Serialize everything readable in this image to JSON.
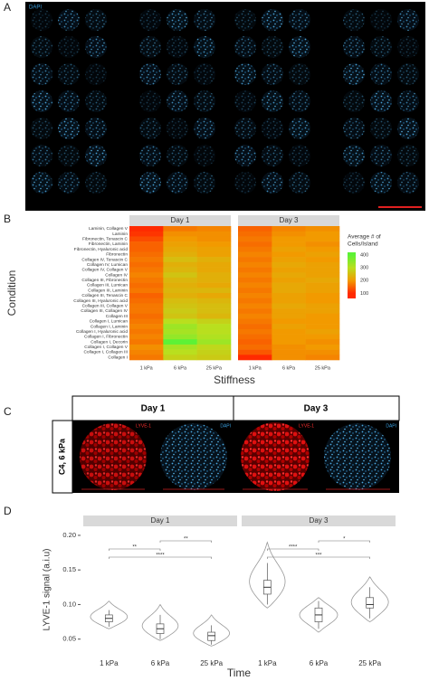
{
  "panel_labels": [
    "A",
    "B",
    "C",
    "D"
  ],
  "panel_a": {
    "stain": "DAPI"
  },
  "panel_c": {
    "sample": "C4, 6 kPa",
    "days": [
      "Day 1",
      "Day 3"
    ],
    "stains": [
      "LYVE-1",
      "DAPI"
    ]
  },
  "chart_data": [
    {
      "type": "heatmap",
      "x_label": "Stiffness",
      "y_label": "Condition",
      "categories": [
        "1 kPa",
        "6 kPa",
        "25 kPa"
      ],
      "rows": [
        "Laminin, Collagen V",
        "Laminin",
        "Fibronectin, Tenascin C",
        "Fibronectin, Laminin",
        "Fibronectin, Hyaluronic acid",
        "Fibronectin",
        "Collagen IV, Tenascin C",
        "Collagen IV, Lumican",
        "Collagen IV, Collagen V",
        "Collagen IV",
        "Collagen III, Fibronectin",
        "Collagen III, Lumican",
        "Collagen III, Laminin",
        "Collagen III, Tenascin C",
        "Collagen III, Hyaluronic acid",
        "Collagen III, Collagen V",
        "Collagen III, Collagen IV",
        "Collagen III",
        "Collagen I, Lumican",
        "Collagen I, Laminin",
        "Collagen I, Hyaluronic acid",
        "Collagen I, Fibronectin",
        "Collagen I, Decorin",
        "Collagen I, Collagen V",
        "Collagen I, Collagen III",
        "Collagen I"
      ],
      "panels": [
        {
          "title": "Day 1",
          "values": [
            [
              90,
              170,
              180
            ],
            [
              110,
              190,
              190
            ],
            [
              130,
              200,
              190
            ],
            [
              150,
              210,
              200
            ],
            [
              150,
              220,
              210
            ],
            [
              160,
              230,
              210
            ],
            [
              170,
              250,
              230
            ],
            [
              160,
              230,
              220
            ],
            [
              170,
              240,
              220
            ],
            [
              180,
              260,
              230
            ],
            [
              170,
              240,
              230
            ],
            [
              160,
              230,
              220
            ],
            [
              170,
              240,
              240
            ],
            [
              150,
              230,
              220
            ],
            [
              160,
              250,
              240
            ],
            [
              170,
              260,
              250
            ],
            [
              170,
              270,
              250
            ],
            [
              160,
              260,
              240
            ],
            [
              170,
              300,
              280
            ],
            [
              180,
              330,
              300
            ],
            [
              170,
              320,
              300
            ],
            [
              180,
              340,
              310
            ],
            [
              170,
              400,
              330
            ],
            [
              190,
              320,
              290
            ],
            [
              180,
              300,
              280
            ],
            [
              170,
              280,
              270
            ]
          ]
        },
        {
          "title": "Day 3",
          "values": [
            [
              150,
              180,
              190
            ],
            [
              160,
              190,
              200
            ],
            [
              170,
              200,
              200
            ],
            [
              160,
              200,
              190
            ],
            [
              170,
              210,
              200
            ],
            [
              180,
              200,
              210
            ],
            [
              170,
              210,
              200
            ],
            [
              180,
              220,
              210
            ],
            [
              170,
              210,
              210
            ],
            [
              180,
              220,
              210
            ],
            [
              170,
              210,
              220
            ],
            [
              180,
              220,
              210
            ],
            [
              170,
              220,
              210
            ],
            [
              180,
              210,
              200
            ],
            [
              170,
              210,
              200
            ],
            [
              180,
              220,
              210
            ],
            [
              170,
              210,
              210
            ],
            [
              180,
              210,
              200
            ],
            [
              170,
              200,
              200
            ],
            [
              160,
              210,
              200
            ],
            [
              170,
              200,
              210
            ],
            [
              160,
              200,
              200
            ],
            [
              150,
              200,
              190
            ],
            [
              160,
              190,
              200
            ],
            [
              140,
              190,
              190
            ],
            [
              90,
              190,
              180
            ]
          ]
        }
      ],
      "colorbar": {
        "title": [
          "Average # of",
          "Cells/Island"
        ],
        "range": [
          60,
          420
        ],
        "ticks": [
          100,
          200,
          300,
          400
        ],
        "colors": [
          "#ff2a00",
          "#f29a00",
          "#b9df1e",
          "#5cf236"
        ]
      }
    },
    {
      "type": "violin",
      "x_label": "Time",
      "y_label": "LYVE-1 signal (a.i.u)",
      "categories": [
        "1 kPa",
        "6 kPa",
        "25 kPa"
      ],
      "ylim": [
        0.03,
        0.213
      ],
      "yticks": [
        {
          "value": 0.05,
          "label": "0.05"
        },
        {
          "value": 0.1,
          "label": "0.10"
        },
        {
          "value": 0.15,
          "label": "0.15"
        },
        {
          "value": 0.2,
          "label": "0.20"
        }
      ],
      "panels": [
        {
          "title": "Day 1",
          "groups": [
            {
              "min": 0.065,
              "whisker_low": 0.068,
              "q1": 0.075,
              "median": 0.08,
              "q3": 0.085,
              "whisker_high": 0.092,
              "max": 0.105
            },
            {
              "min": 0.048,
              "whisker_low": 0.05,
              "q1": 0.058,
              "median": 0.065,
              "q3": 0.072,
              "whisker_high": 0.085,
              "max": 0.1
            },
            {
              "min": 0.04,
              "whisker_low": 0.042,
              "q1": 0.048,
              "median": 0.055,
              "q3": 0.06,
              "whisker_high": 0.07,
              "max": 0.085
            }
          ],
          "comparisons": [
            {
              "from": 1,
              "to": 2,
              "label": "**"
            },
            {
              "from": 0,
              "to": 1,
              "label": "**"
            },
            {
              "from": 0,
              "to": 2,
              "label": "****"
            }
          ]
        },
        {
          "title": "Day 3",
          "groups": [
            {
              "min": 0.095,
              "whisker_low": 0.1,
              "q1": 0.115,
              "median": 0.125,
              "q3": 0.135,
              "whisker_high": 0.16,
              "max": 0.19
            },
            {
              "min": 0.06,
              "whisker_low": 0.065,
              "q1": 0.075,
              "median": 0.085,
              "q3": 0.095,
              "whisker_high": 0.105,
              "max": 0.11
            },
            {
              "min": 0.075,
              "whisker_low": 0.08,
              "q1": 0.095,
              "median": 0.1,
              "q3": 0.11,
              "whisker_high": 0.125,
              "max": 0.14
            }
          ],
          "comparisons": [
            {
              "from": 1,
              "to": 2,
              "label": "*"
            },
            {
              "from": 0,
              "to": 1,
              "label": "****"
            },
            {
              "from": 0,
              "to": 2,
              "label": "***"
            }
          ]
        }
      ]
    }
  ]
}
